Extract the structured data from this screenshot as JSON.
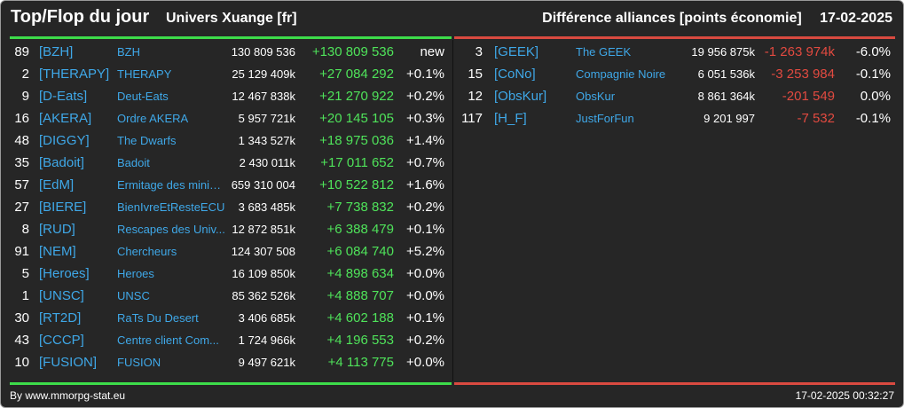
{
  "header": {
    "title": "Top/Flop du jour",
    "server": "Univers Xuange [fr]",
    "metric": "Différence alliances [points économie]",
    "date": "17-02-2025"
  },
  "colors": {
    "background": "#262626",
    "top_line": "#3ddc4a",
    "flop_line": "#d94a40",
    "positive": "#4fe35a",
    "negative": "#e24a40",
    "link": "#3fa8e8"
  },
  "top": [
    {
      "rank": "89",
      "tag": "[BZH]",
      "name": "BZH",
      "total": "130 809 536",
      "diff": "+130 809 536",
      "pct": "new"
    },
    {
      "rank": "2",
      "tag": "[THERAPY]",
      "name": "THERAPY",
      "total": "25 129 409k",
      "diff": "+27 084 292",
      "pct": "+0.1%"
    },
    {
      "rank": "9",
      "tag": "[D-Eats]",
      "name": "Deut-Eats",
      "total": "12 467 838k",
      "diff": "+21 270 922",
      "pct": "+0.2%"
    },
    {
      "rank": "16",
      "tag": "[AKERA]",
      "name": "Ordre AKERA",
      "total": "5 957 721k",
      "diff": "+20 145 105",
      "pct": "+0.3%"
    },
    {
      "rank": "48",
      "tag": "[DIGGY]",
      "name": "The Dwarfs",
      "total": "1 343 527k",
      "diff": "+18 975 036",
      "pct": "+1.4%"
    },
    {
      "rank": "35",
      "tag": "[Badoit]",
      "name": "Badoit",
      "total": "2 430 011k",
      "diff": "+17 011 652",
      "pct": "+0.7%"
    },
    {
      "rank": "57",
      "tag": "[EdM]",
      "name": "Ermitage des minier...",
      "total": "659 310 004",
      "diff": "+10 522 812",
      "pct": "+1.6%"
    },
    {
      "rank": "27",
      "tag": "[BIERE]",
      "name": "BienIvreEtResteECU",
      "total": "3 683 485k",
      "diff": "+7 738 832",
      "pct": "+0.2%"
    },
    {
      "rank": "8",
      "tag": "[RUD]",
      "name": "Rescapes des Univ...",
      "total": "12 872 851k",
      "diff": "+6 388 479",
      "pct": "+0.1%"
    },
    {
      "rank": "91",
      "tag": "[NEM]",
      "name": "Chercheurs",
      "total": "124 307 508",
      "diff": "+6 084 740",
      "pct": "+5.2%"
    },
    {
      "rank": "5",
      "tag": "[Heroes]",
      "name": "Heroes",
      "total": "16 109 850k",
      "diff": "+4 898 634",
      "pct": "+0.0%"
    },
    {
      "rank": "1",
      "tag": "[UNSC]",
      "name": "UNSC",
      "total": "85 362 526k",
      "diff": "+4 888 707",
      "pct": "+0.0%"
    },
    {
      "rank": "30",
      "tag": "[RT2D]",
      "name": "RaTs Du Desert",
      "total": "3 406 685k",
      "diff": "+4 602 188",
      "pct": "+0.1%"
    },
    {
      "rank": "43",
      "tag": "[CCCP]",
      "name": "Centre client Com...",
      "total": "1 724 966k",
      "diff": "+4 196 553",
      "pct": "+0.2%"
    },
    {
      "rank": "10",
      "tag": "[FUSION]",
      "name": "FUSION",
      "total": "9 497 621k",
      "diff": "+4 113 775",
      "pct": "+0.0%"
    }
  ],
  "flop": [
    {
      "rank": "3",
      "tag": "[GEEK]",
      "name": "The GEEK",
      "total": "19 956 875k",
      "diff": "-1 263 974k",
      "pct": "-6.0%"
    },
    {
      "rank": "15",
      "tag": "[CoNo]",
      "name": "Compagnie Noire",
      "total": "6 051 536k",
      "diff": "-3 253 984",
      "pct": "-0.1%"
    },
    {
      "rank": "12",
      "tag": "[ObsKur]",
      "name": "ObsKur",
      "total": "8 861 364k",
      "diff": "-201 549",
      "pct": "0.0%"
    },
    {
      "rank": "117",
      "tag": "[H_F]",
      "name": "JustForFun",
      "total": "9 201 997",
      "diff": "-7 532",
      "pct": "-0.1%"
    }
  ],
  "footer": {
    "source": "By www.mmorpg-stat.eu",
    "timestamp": "17-02-2025 00:32:27"
  }
}
